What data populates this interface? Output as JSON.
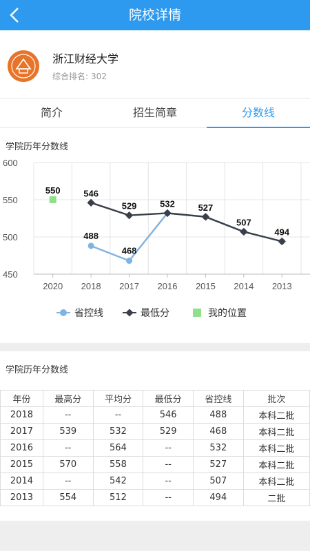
{
  "header": {
    "title": "院校详情",
    "back_icon": "chevron-left-icon"
  },
  "school": {
    "name": "浙江财经大学",
    "rank_label": "综合排名:",
    "rank_value": "302"
  },
  "tabs": [
    {
      "label": "简介",
      "active": false
    },
    {
      "label": "招生简章",
      "active": false
    },
    {
      "label": "分数线",
      "active": true
    }
  ],
  "chart_section": {
    "title": "学院历年分数线"
  },
  "chart_data": {
    "type": "line",
    "categories": [
      "2020",
      "2018",
      "2017",
      "2016",
      "2015",
      "2014",
      "2013"
    ],
    "ylim": [
      450,
      600
    ],
    "yticks": [
      "600",
      "550",
      "500",
      "450"
    ],
    "series": [
      {
        "name": "省控线",
        "color": "#7fb3e0",
        "values": [
          null,
          488,
          468,
          532,
          527,
          507,
          494
        ]
      },
      {
        "name": "最低分",
        "color": "#3a3f4a",
        "values": [
          null,
          546,
          529,
          532,
          527,
          507,
          494
        ]
      },
      {
        "name": "我的位置",
        "color": "#8ee08a",
        "values": [
          550,
          null,
          null,
          null,
          null,
          null,
          null
        ]
      }
    ],
    "data_labels": [
      {
        "cat": 0,
        "value": 550,
        "text": "550"
      },
      {
        "cat": 1,
        "value": 546,
        "text": "546"
      },
      {
        "cat": 1,
        "value": 488,
        "text": "488"
      },
      {
        "cat": 2,
        "value": 529,
        "text": "529"
      },
      {
        "cat": 2,
        "value": 468,
        "text": "468"
      },
      {
        "cat": 3,
        "value": 532,
        "text": "532"
      },
      {
        "cat": 4,
        "value": 527,
        "text": "527"
      },
      {
        "cat": 5,
        "value": 507,
        "text": "507"
      },
      {
        "cat": 6,
        "value": 494,
        "text": "494"
      }
    ],
    "legend_position": "bottom"
  },
  "table_section": {
    "title": "学院历年分数线",
    "headers": [
      "年份",
      "最高分",
      "平均分",
      "最低分",
      "省控线",
      "批次"
    ],
    "rows": [
      [
        "2018",
        "--",
        "--",
        "546",
        "488",
        "本科二批"
      ],
      [
        "2017",
        "539",
        "532",
        "529",
        "468",
        "本科二批"
      ],
      [
        "2016",
        "--",
        "564",
        "--",
        "532",
        "本科二批"
      ],
      [
        "2015",
        "570",
        "558",
        "--",
        "527",
        "本科二批"
      ],
      [
        "2014",
        "--",
        "542",
        "--",
        "507",
        "本科二批"
      ],
      [
        "2013",
        "554",
        "512",
        "--",
        "494",
        "二批"
      ]
    ]
  }
}
